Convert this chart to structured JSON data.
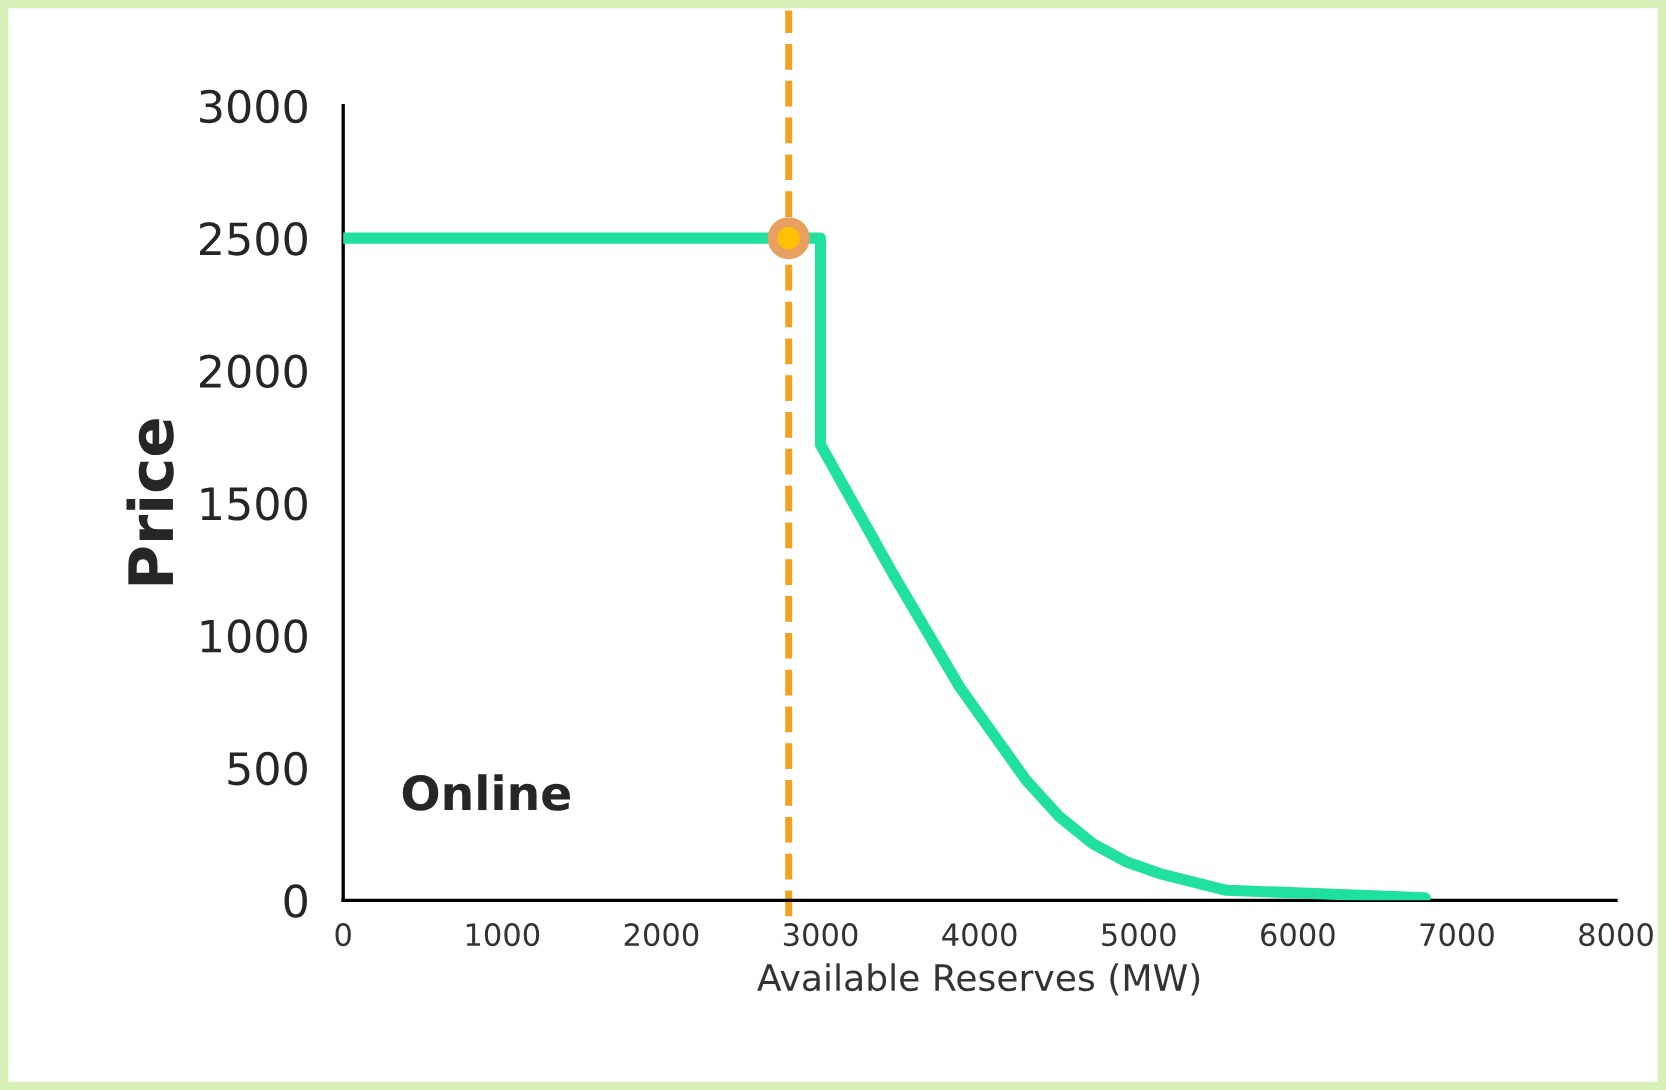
{
  "chart_data": {
    "type": "line",
    "xlabel": "Available Reserves (MW)",
    "ylabel": "Price",
    "xlim": [
      0,
      8000
    ],
    "xticks": [
      0,
      1000,
      2000,
      3000,
      4000,
      5000,
      6000,
      7000,
      8000
    ],
    "ylim": [
      0,
      3000
    ],
    "yticks": [
      0,
      500,
      1000,
      1500,
      2000,
      2500,
      3000
    ],
    "grid": false,
    "legend": false,
    "marker": "none",
    "line_style": "solid",
    "series": [
      {
        "color": "#20e0a0",
        "x": [
          0,
          3000,
          3000,
          3455,
          3664,
          3874,
          4293,
          4503,
          4711,
          4920,
          5132,
          5551,
          6800
        ],
        "values": [
          2500,
          2500,
          1720,
          1233,
          1020,
          806,
          453,
          315,
          214,
          146,
          101,
          38,
          10
        ]
      },
      {
        "type": "scatter",
        "color": "#e8a060",
        "marker": "circle",
        "x": [
          2800
        ],
        "values": [
          2500
        ]
      }
    ],
    "ref_lines": [
      {
        "axis": "x",
        "value": 2800,
        "color": "#f5a020",
        "line_style": "dashed"
      }
    ],
    "annotations": [
      "Online"
    ]
  }
}
